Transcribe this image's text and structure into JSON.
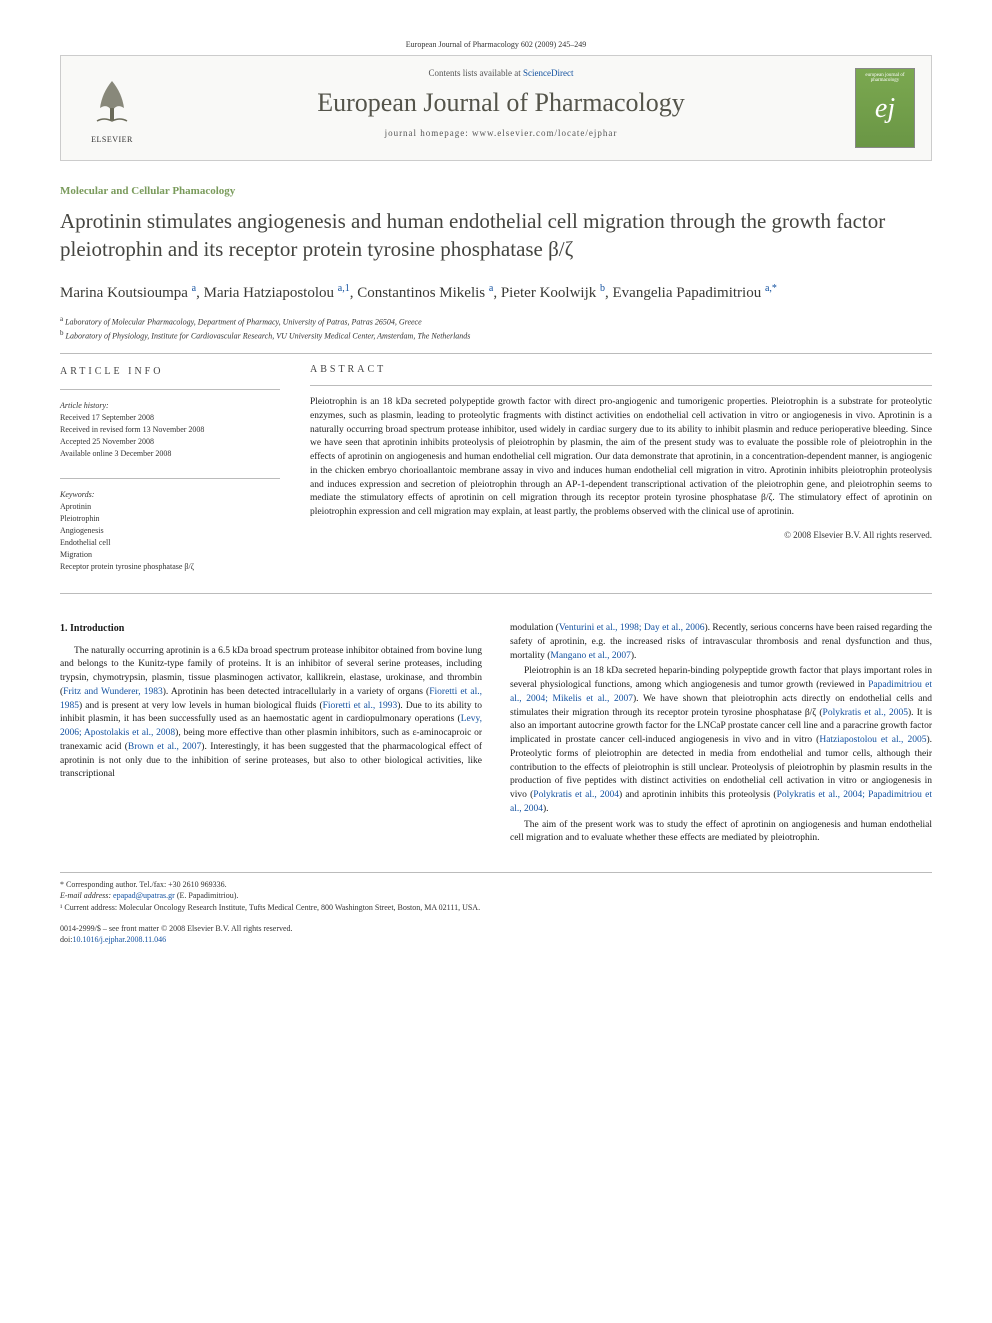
{
  "running_header": "European Journal of Pharmacology 602 (2009) 245–249",
  "header": {
    "elsevier_label": "ELSEVIER",
    "contents_prefix": "Contents lists available at ",
    "contents_link": "ScienceDirect",
    "journal_name": "European Journal of Pharmacology",
    "homepage_prefix": "journal homepage: ",
    "homepage_url": "www.elsevier.com/locate/ejphar",
    "cover_top": "european journal of pharmacology",
    "cover_e": "ej"
  },
  "section_label": "Molecular and Cellular Phamacology",
  "title": "Aprotinin stimulates angiogenesis and human endothelial cell migration through the growth factor pleiotrophin and its receptor protein tyrosine phosphatase β/ζ",
  "authors_html": "Marina Koutsioumpa <sup>a</sup>, Maria Hatziapostolou <sup>a,1</sup>, Constantinos Mikelis <sup>a</sup>, Pieter Koolwijk <sup>b</sup>, Evangelia Papadimitriou <sup>a,*</sup>",
  "affiliations": [
    "a  Laboratory of Molecular Pharmacology, Department of Pharmacy, University of Patras, Patras 26504, Greece",
    "b  Laboratory of Physiology, Institute for Cardiovascular Research, VU University Medical Center, Amsterdam, The Netherlands"
  ],
  "info": {
    "heading": "ARTICLE INFO",
    "history_label": "Article history:",
    "history": [
      "Received 17 September 2008",
      "Received in revised form 13 November 2008",
      "Accepted 25 November 2008",
      "Available online 3 December 2008"
    ],
    "keywords_label": "Keywords:",
    "keywords": [
      "Aprotinin",
      "Pleiotrophin",
      "Angiogenesis",
      "Endothelial cell",
      "Migration",
      "Receptor protein tyrosine phosphatase β/ζ"
    ]
  },
  "abstract": {
    "heading": "ABSTRACT",
    "text": "Pleiotrophin is an 18 kDa secreted polypeptide growth factor with direct pro-angiogenic and tumorigenic properties. Pleiotrophin is a substrate for proteolytic enzymes, such as plasmin, leading to proteolytic fragments with distinct activities on endothelial cell activation in vitro or angiogenesis in vivo. Aprotinin is a naturally occurring broad spectrum protease inhibitor, used widely in cardiac surgery due to its ability to inhibit plasmin and reduce perioperative bleeding. Since we have seen that aprotinin inhibits proteolysis of pleiotrophin by plasmin, the aim of the present study was to evaluate the possible role of pleiotrophin in the effects of aprotinin on angiogenesis and human endothelial cell migration. Our data demonstrate that aprotinin, in a concentration-dependent manner, is angiogenic in the chicken embryo chorioallantoic membrane assay in vivo and induces human endothelial cell migration in vitro. Aprotinin inhibits pleiotrophin proteolysis and induces expression and secretion of pleiotrophin through an AP-1-dependent transcriptional activation of the pleiotrophin gene, and pleiotrophin seems to mediate the stimulatory effects of aprotinin on cell migration through its receptor protein tyrosine phosphatase β/ζ. The stimulatory effect of aprotinin on pleiotrophin expression and cell migration may explain, at least partly, the problems observed with the clinical use of aprotinin.",
    "copyright": "© 2008 Elsevier B.V. All rights reserved."
  },
  "intro": {
    "heading": "1. Introduction",
    "col1_p1": "The naturally occurring aprotinin is a 6.5 kDa broad spectrum protease inhibitor obtained from bovine lung and belongs to the Kunitz-type family of proteins. It is an inhibitor of several serine proteases, including trypsin, chymotrypsin, plasmin, tissue plasminogen activator, kallikrein, elastase, urokinase, and thrombin (Fritz and Wunderer, 1983). Aprotinin has been detected intracellularly in a variety of organs (Fioretti et al., 1985) and is present at very low levels in human biological fluids (Fioretti et al., 1993). Due to its ability to inhibit plasmin, it has been successfully used as an haemostatic agent in cardiopulmonary operations (Levy, 2006; Apostolakis et al., 2008), being more effective than other plasmin inhibitors, such as ε-aminocaproic or tranexamic acid (Brown et al., 2007). Interestingly, it has been suggested that the pharmacological effect of aprotinin is not only due to the inhibition of serine proteases, but also to other biological activities, like transcriptional",
    "col2_p1": "modulation (Venturini et al., 1998; Day et al., 2006). Recently, serious concerns have been raised regarding the safety of aprotinin, e.g. the increased risks of intravascular thrombosis and renal dysfunction and thus, mortality (Mangano et al., 2007).",
    "col2_p2": "Pleiotrophin is an 18 kDa secreted heparin-binding polypeptide growth factor that plays important roles in several physiological functions, among which angiogenesis and tumor growth (reviewed in Papadimitriou et al., 2004; Mikelis et al., 2007). We have shown that pleiotrophin acts directly on endothelial cells and stimulates their migration through its receptor protein tyrosine phosphatase β/ζ (Polykratis et al., 2005). It is also an important autocrine growth factor for the LNCaP prostate cancer cell line and a paracrine growth factor implicated in prostate cancer cell-induced angiogenesis in vivo and in vitro (Hatziapostolou et al., 2005). Proteolytic forms of pleiotrophin are detected in media from endothelial and tumor cells, although their contribution to the effects of pleiotrophin is still unclear. Proteolysis of pleiotrophin by plasmin results in the production of five peptides with distinct activities on endothelial cell activation in vitro or angiogenesis in vivo (Polykratis et al., 2004) and aprotinin inhibits this proteolysis (Polykratis et al., 2004; Papadimitriou et al., 2004).",
    "col2_p3": "The aim of the present work was to study the effect of aprotinin on angiogenesis and human endothelial cell migration and to evaluate whether these effects are mediated by pleiotrophin."
  },
  "footer": {
    "corr_label": "* Corresponding author. Tel./fax: +30 2610 969336.",
    "email_label": "E-mail address: ",
    "email": "epapad@upatras.gr",
    "email_name": " (E. Papadimitriou).",
    "note1": "¹ Current address: Molecular Oncology Research Institute, Tufts Medical Centre, 800 Washington Street, Boston, MA 02111, USA.",
    "left": "0014-2999/$ – see front matter © 2008 Elsevier B.V. All rights reserved.",
    "doi_label": "doi:",
    "doi": "10.1016/j.ejphar.2008.11.046"
  },
  "colors": {
    "link": "#1452a0",
    "section": "#7a9b5c",
    "title": "#454540",
    "cover_bg": "#7ba850"
  }
}
